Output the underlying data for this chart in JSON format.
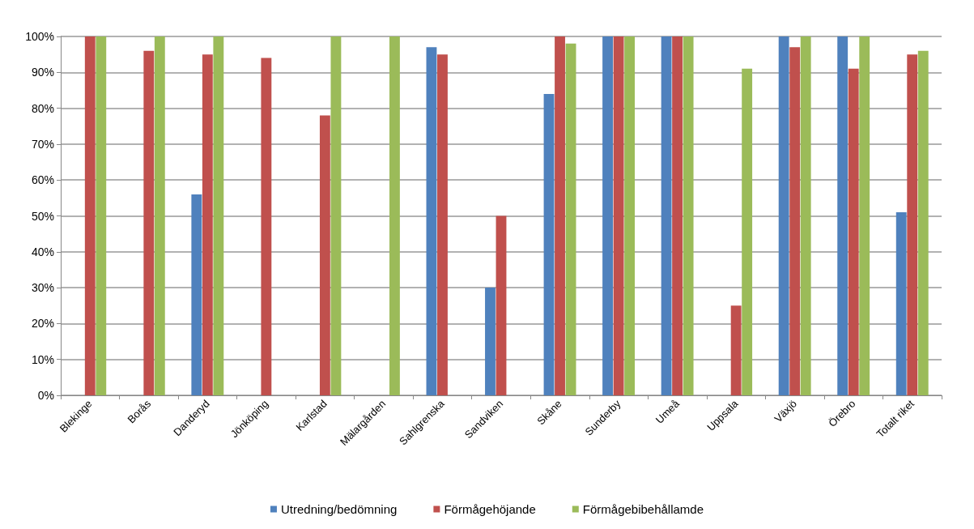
{
  "chart_data": {
    "type": "bar",
    "categories": [
      "Blekinge",
      "Borås",
      "Danderyd",
      "Jönköping",
      "Karlstad",
      "Mälargården",
      "Sahlgrenska",
      "Sandviken",
      "Skåne",
      "Sunderby",
      "Umeå",
      "Uppsala",
      "Växjö",
      "Örebro",
      "Totalt riket"
    ],
    "series": [
      {
        "name": "Utredning/bedömning",
        "color": "#4f81bd",
        "values": [
          0,
          0,
          56,
          0,
          0,
          0,
          97,
          30,
          84,
          100,
          100,
          0,
          100,
          100,
          51
        ]
      },
      {
        "name": "Förmågehöjande",
        "color": "#c0504d",
        "values": [
          100,
          96,
          95,
          94,
          78,
          0,
          95,
          50,
          100,
          100,
          100,
          25,
          97,
          91,
          95
        ]
      },
      {
        "name": "Förmågebibehållamde",
        "color": "#9bbb59",
        "values": [
          100,
          100,
          100,
          0,
          100,
          100,
          0,
          0,
          98,
          100,
          100,
          91,
          100,
          100,
          96
        ]
      }
    ],
    "ylim": [
      0,
      100
    ],
    "yticks": [
      {
        "value": 0,
        "label": "0%"
      },
      {
        "value": 10,
        "label": "10%"
      },
      {
        "value": 20,
        "label": "20%"
      },
      {
        "value": 30,
        "label": "30%"
      },
      {
        "value": 40,
        "label": "40%"
      },
      {
        "value": 50,
        "label": "50%"
      },
      {
        "value": 60,
        "label": "60%"
      },
      {
        "value": 70,
        "label": "70%"
      },
      {
        "value": 80,
        "label": "80%"
      },
      {
        "value": 90,
        "label": "90%"
      },
      {
        "value": 100,
        "label": "100%"
      }
    ],
    "grid": "y",
    "legend": "bottom"
  }
}
